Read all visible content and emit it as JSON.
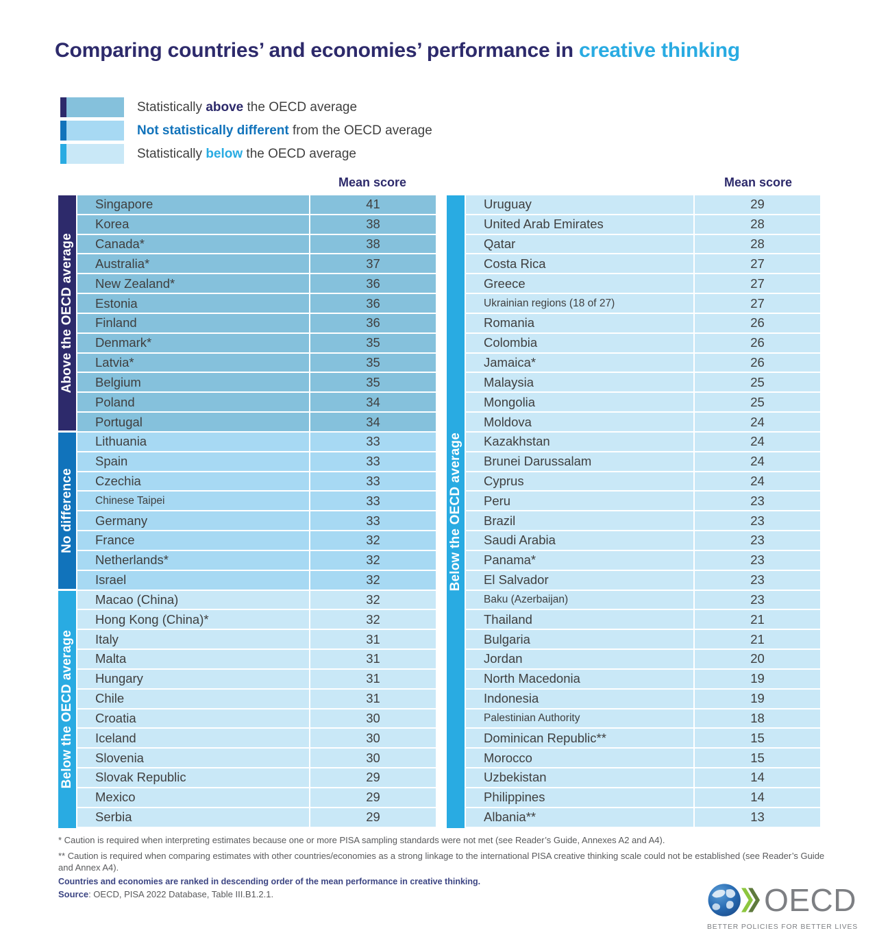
{
  "title": {
    "prefix": "Comparing countries’ and economies’ performance in ",
    "highlight": "creative thinking"
  },
  "colors": {
    "navy": "#2d2a6b",
    "blue": "#1173bb",
    "cyan": "#29abe2",
    "row_above": "#85c1dc",
    "row_nodiff": "#a7d9f3",
    "row_below": "#c9e8f7"
  },
  "legend": {
    "items": [
      {
        "pre": "Statistically ",
        "bold": "above",
        "post": " the OECD average",
        "tick_color": "#2d2a6b",
        "swatch_color": "#85c1dc",
        "bold_color": "#2d2a6b"
      },
      {
        "pre": "",
        "bold": "Not statistically different",
        "post": " from the OECD average",
        "tick_color": "#1173bb",
        "swatch_color": "#a7d9f3",
        "bold_color": "#1173bb"
      },
      {
        "pre": "Statistically ",
        "bold": "below",
        "post": " the OECD average",
        "tick_color": "#29abe2",
        "swatch_color": "#c9e8f7",
        "bold_color": "#29abe2"
      }
    ]
  },
  "tables": [
    {
      "header": "Mean score",
      "sections": [
        {
          "label": "Above the OECD average",
          "bar_color": "#2d2a6b",
          "row_color": "#85c1dc",
          "rows": [
            {
              "name": "Singapore",
              "score": "41"
            },
            {
              "name": "Korea",
              "score": "38"
            },
            {
              "name": "Canada*",
              "score": "38"
            },
            {
              "name": "Australia*",
              "score": "37"
            },
            {
              "name": "New Zealand*",
              "score": "36"
            },
            {
              "name": "Estonia",
              "score": "36"
            },
            {
              "name": "Finland",
              "score": "36"
            },
            {
              "name": "Denmark*",
              "score": "35"
            },
            {
              "name": "Latvia*",
              "score": "35"
            },
            {
              "name": "Belgium",
              "score": "35"
            },
            {
              "name": "Poland",
              "score": "34"
            },
            {
              "name": "Portugal",
              "score": "34"
            }
          ]
        },
        {
          "label": "No difference",
          "bar_color": "#1173bb",
          "row_color": "#a7d9f3",
          "rows": [
            {
              "name": "Lithuania",
              "score": "33"
            },
            {
              "name": "Spain",
              "score": "33"
            },
            {
              "name": "Czechia",
              "score": "33"
            },
            {
              "name": "Chinese Taipei",
              "score": "33",
              "small": true
            },
            {
              "name": "Germany",
              "score": "33"
            },
            {
              "name": "France",
              "score": "32"
            },
            {
              "name": "Netherlands*",
              "score": "32"
            },
            {
              "name": "Israel",
              "score": "32"
            }
          ]
        },
        {
          "label": "Below the OECD average",
          "bar_color": "#29abe2",
          "row_color": "#c9e8f7",
          "rows": [
            {
              "name": "Macao (China)",
              "score": "32"
            },
            {
              "name": "Hong Kong (China)*",
              "score": "32"
            },
            {
              "name": "Italy",
              "score": "31"
            },
            {
              "name": "Malta",
              "score": "31"
            },
            {
              "name": "Hungary",
              "score": "31"
            },
            {
              "name": "Chile",
              "score": "31"
            },
            {
              "name": "Croatia",
              "score": "30"
            },
            {
              "name": "Iceland",
              "score": "30"
            },
            {
              "name": "Slovenia",
              "score": "30"
            },
            {
              "name": "Slovak Republic",
              "score": "29"
            },
            {
              "name": "Mexico",
              "score": "29"
            },
            {
              "name": "Serbia",
              "score": "29"
            }
          ]
        }
      ]
    },
    {
      "header": "Mean score",
      "sections": [
        {
          "label": "Below the OECD average",
          "bar_color": "#29abe2",
          "row_color": "#c9e8f7",
          "rows": [
            {
              "name": "Uruguay",
              "score": "29"
            },
            {
              "name": "United Arab Emirates",
              "score": "28"
            },
            {
              "name": "Qatar",
              "score": "28"
            },
            {
              "name": "Costa Rica",
              "score": "27"
            },
            {
              "name": "Greece",
              "score": "27"
            },
            {
              "name": "Ukrainian regions (18 of 27)",
              "score": "27",
              "small": true
            },
            {
              "name": "Romania",
              "score": "26"
            },
            {
              "name": "Colombia",
              "score": "26"
            },
            {
              "name": "Jamaica*",
              "score": "26"
            },
            {
              "name": "Malaysia",
              "score": "25"
            },
            {
              "name": "Mongolia",
              "score": "25"
            },
            {
              "name": "Moldova",
              "score": "24"
            },
            {
              "name": "Kazakhstan",
              "score": "24"
            },
            {
              "name": "Brunei Darussalam",
              "score": "24"
            },
            {
              "name": "Cyprus",
              "score": "24"
            },
            {
              "name": "Peru",
              "score": "23"
            },
            {
              "name": "Brazil",
              "score": "23"
            },
            {
              "name": "Saudi Arabia",
              "score": "23"
            },
            {
              "name": "Panama*",
              "score": "23"
            },
            {
              "name": "El Salvador",
              "score": "23"
            },
            {
              "name": "Baku (Azerbaijan)",
              "score": "23",
              "small": true
            },
            {
              "name": "Thailand",
              "score": "21"
            },
            {
              "name": "Bulgaria",
              "score": "21"
            },
            {
              "name": "Jordan",
              "score": "20"
            },
            {
              "name": "North Macedonia",
              "score": "19"
            },
            {
              "name": "Indonesia",
              "score": "19"
            },
            {
              "name": "Palestinian Authority",
              "score": "18",
              "small": true
            },
            {
              "name": "Dominican Republic**",
              "score": "15"
            },
            {
              "name": "Morocco",
              "score": "15"
            },
            {
              "name": "Uzbekistan",
              "score": "14"
            },
            {
              "name": "Philippines",
              "score": "14"
            },
            {
              "name": "Albania**",
              "score": "13"
            }
          ]
        }
      ]
    }
  ],
  "footnotes": {
    "note1": "* Caution is required when interpreting estimates because one or more PISA sampling standards were not met (see Reader’s Guide, Annexes A2 and A4).",
    "note2": "** Caution is required when comparing estimates with other countries/economies as a strong linkage to the international PISA creative thinking scale could not be established (see Reader’s Guide and Annex A4).",
    "ranked": "Countries and economies are ranked in descending order of the mean performance in creative thinking.",
    "source_label": "Source",
    "source_rest": ": OECD, PISA 2022 Database, Table III.B1.2.1."
  },
  "logo": {
    "text": "OECD",
    "tagline": "BETTER POLICIES FOR BETTER LIVES"
  },
  "chart_data": {
    "type": "table",
    "title": "Comparing countries' and economies' performance in creative thinking",
    "value_label": "Mean score",
    "legend_position": "top-left",
    "series": [
      {
        "name": "Statistically above the OECD average",
        "categories": [
          "Singapore",
          "Korea",
          "Canada*",
          "Australia*",
          "New Zealand*",
          "Estonia",
          "Finland",
          "Denmark*",
          "Latvia*",
          "Belgium",
          "Poland",
          "Portugal"
        ],
        "values": [
          41,
          38,
          38,
          37,
          36,
          36,
          36,
          35,
          35,
          35,
          34,
          34
        ]
      },
      {
        "name": "Not statistically different from the OECD average",
        "categories": [
          "Lithuania",
          "Spain",
          "Czechia",
          "Chinese Taipei",
          "Germany",
          "France",
          "Netherlands*",
          "Israel"
        ],
        "values": [
          33,
          33,
          33,
          33,
          33,
          32,
          32,
          32
        ]
      },
      {
        "name": "Statistically below the OECD average",
        "categories": [
          "Macao (China)",
          "Hong Kong (China)*",
          "Italy",
          "Malta",
          "Hungary",
          "Chile",
          "Croatia",
          "Iceland",
          "Slovenia",
          "Slovak Republic",
          "Mexico",
          "Serbia",
          "Uruguay",
          "United Arab Emirates",
          "Qatar",
          "Costa Rica",
          "Greece",
          "Ukrainian regions (18 of 27)",
          "Romania",
          "Colombia",
          "Jamaica*",
          "Malaysia",
          "Mongolia",
          "Moldova",
          "Kazakhstan",
          "Brunei Darussalam",
          "Cyprus",
          "Peru",
          "Brazil",
          "Saudi Arabia",
          "Panama*",
          "El Salvador",
          "Baku (Azerbaijan)",
          "Thailand",
          "Bulgaria",
          "Jordan",
          "North Macedonia",
          "Indonesia",
          "Palestinian Authority",
          "Dominican Republic**",
          "Morocco",
          "Uzbekistan",
          "Philippines",
          "Albania**"
        ],
        "values": [
          32,
          32,
          31,
          31,
          31,
          31,
          30,
          30,
          30,
          29,
          29,
          29,
          29,
          28,
          28,
          27,
          27,
          27,
          26,
          26,
          26,
          25,
          25,
          24,
          24,
          24,
          24,
          23,
          23,
          23,
          23,
          23,
          23,
          21,
          21,
          20,
          19,
          19,
          18,
          15,
          15,
          14,
          14,
          13
        ]
      }
    ],
    "annotations": [
      "Countries and economies are ranked in descending order of the mean performance in creative thinking."
    ]
  }
}
